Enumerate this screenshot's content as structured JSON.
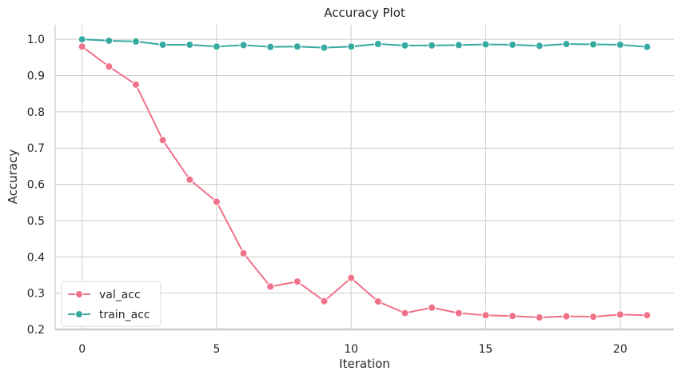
{
  "chart_data": {
    "type": "line",
    "title": "Accuracy Plot",
    "xlabel": "Iteration",
    "ylabel": "Accuracy",
    "xlim": [
      -1.0,
      22.0
    ],
    "ylim": [
      0.2,
      1.04
    ],
    "x_ticks": [
      0,
      5,
      10,
      15,
      20
    ],
    "y_ticks": [
      0.2,
      0.3,
      0.4,
      0.5,
      0.6,
      0.7,
      0.8,
      0.9,
      1.0
    ],
    "x_tick_labels": [
      "0",
      "5",
      "10",
      "15",
      "20"
    ],
    "y_tick_labels": [
      "0.2",
      "0.3",
      "0.4",
      "0.5",
      "0.6",
      "0.7",
      "0.8",
      "0.9",
      "1.0"
    ],
    "grid": true,
    "legend_position": "bottom-left",
    "x": [
      0,
      1,
      2,
      3,
      4,
      5,
      6,
      7,
      8,
      9,
      10,
      11,
      12,
      13,
      14,
      15,
      16,
      17,
      18,
      19,
      20,
      21
    ],
    "series": [
      {
        "name": "val_acc",
        "color": "#f0718a",
        "values": [
          0.98,
          0.925,
          0.875,
          0.722,
          0.613,
          0.552,
          0.41,
          0.318,
          0.332,
          0.278,
          0.342,
          0.277,
          0.245,
          0.26,
          0.245,
          0.239,
          0.237,
          0.233,
          0.236,
          0.235,
          0.241,
          0.239
        ]
      },
      {
        "name": "train_acc",
        "color": "#36aaa0",
        "values": [
          1.0,
          0.996,
          0.994,
          0.985,
          0.985,
          0.98,
          0.984,
          0.979,
          0.98,
          0.977,
          0.98,
          0.987,
          0.983,
          0.983,
          0.984,
          0.986,
          0.985,
          0.982,
          0.987,
          0.986,
          0.985,
          0.979
        ]
      }
    ]
  }
}
